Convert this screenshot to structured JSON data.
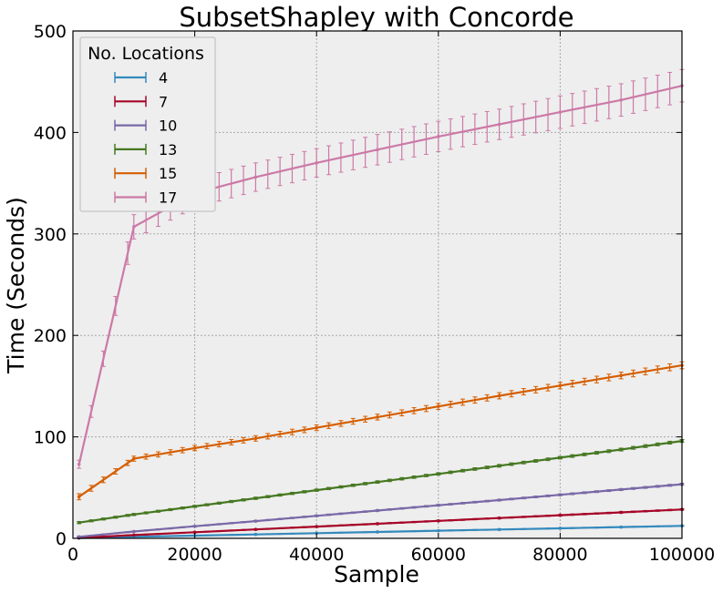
{
  "chart_data": {
    "type": "line",
    "title": "SubsetShapley with Concorde",
    "xlabel": "Sample",
    "ylabel": "Time (Seconds)",
    "xlim": [
      0,
      100000
    ],
    "ylim": [
      0,
      500
    ],
    "xticks": [
      0,
      20000,
      40000,
      60000,
      80000,
      100000
    ],
    "yticks": [
      0,
      100,
      200,
      300,
      400,
      500
    ],
    "xtick_labels": [
      "0",
      "20000",
      "40000",
      "60000",
      "80000",
      "100000"
    ],
    "ytick_labels": [
      "0",
      "100",
      "200",
      "300",
      "400",
      "500"
    ],
    "grid": true,
    "legend": {
      "title": "No. Locations",
      "placement": "top-left"
    },
    "x": [
      1000,
      10000,
      20000,
      30000,
      40000,
      50000,
      60000,
      70000,
      80000,
      90000,
      100000
    ],
    "series": [
      {
        "name": "4",
        "color": "#348abd",
        "values": [
          0.3,
          1.5,
          2.7,
          3.9,
          5.1,
          6.3,
          7.5,
          8.7,
          9.9,
          11.1,
          12.3
        ],
        "errors": [
          0.3,
          0.3,
          0.4,
          0.4,
          0.4,
          0.4,
          0.5,
          0.5,
          0.5,
          0.5,
          0.5
        ]
      },
      {
        "name": "7",
        "color": "#a60628",
        "values": [
          0.5,
          3.2,
          6,
          8.8,
          11.6,
          14.4,
          17.2,
          20,
          22.8,
          25.6,
          28.5
        ],
        "errors": [
          0.3,
          0.4,
          0.4,
          0.5,
          0.5,
          0.6,
          0.6,
          0.6,
          0.7,
          0.7,
          0.7
        ]
      },
      {
        "name": "10",
        "color": "#7a68a6",
        "values": [
          1.5,
          6.7,
          11.9,
          17,
          22.2,
          27.4,
          32.6,
          37.7,
          42.9,
          48.1,
          53.3
        ],
        "errors": [
          0.5,
          0.5,
          0.6,
          0.6,
          0.7,
          0.7,
          0.8,
          0.8,
          0.9,
          0.9,
          1
        ]
      },
      {
        "name": "13",
        "color": "#467821",
        "values": [
          15.5,
          23.5,
          31.5,
          39.5,
          47.5,
          55.5,
          63.5,
          71.5,
          79.5,
          87.5,
          96
        ],
        "errors": [
          1,
          1,
          1,
          1.1,
          1.1,
          1.2,
          1.2,
          1.3,
          1.3,
          1.4,
          1.4
        ]
      },
      {
        "name": "15",
        "color": "#d55e00",
        "values": [
          41,
          78.5,
          89,
          98.5,
          109,
          119.5,
          130,
          140.5,
          150.5,
          160.5,
          170.5
        ],
        "errors": [
          3,
          2.5,
          2.6,
          2.7,
          2.8,
          2.9,
          3,
          3.1,
          3.2,
          3.3,
          3.4
        ]
      },
      {
        "name": "17",
        "color": "#cc79a7",
        "values": [
          73,
          307,
          340,
          356,
          370,
          383,
          396,
          408,
          420,
          432,
          446
        ],
        "errors": [
          4,
          12,
          14,
          14,
          14,
          15,
          15,
          15,
          16,
          16,
          16
        ]
      }
    ]
  }
}
